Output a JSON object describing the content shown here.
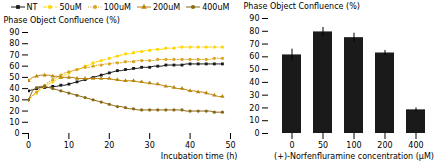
{
  "chart_data": [
    {
      "type": "line",
      "xlabel": "Incubation time (h)",
      "ylabel": "Phase Object Confluence (%)",
      "x": [
        0,
        1,
        2,
        3,
        4,
        5,
        6,
        7,
        8,
        9,
        10,
        11,
        12,
        13,
        14,
        15,
        16,
        17,
        18,
        19,
        20,
        21,
        22,
        23,
        24,
        25,
        26,
        27,
        28,
        29,
        30,
        31,
        32,
        33,
        34,
        35,
        36,
        37,
        38,
        39,
        40,
        41,
        42,
        43,
        44,
        45,
        46,
        47,
        48
      ],
      "series": [
        {
          "name": "NT",
          "color": "#1a1a1a",
          "marker": "square",
          "line_style": "solid",
          "values": [
            38,
            39,
            40,
            41,
            41,
            41,
            42,
            42,
            43,
            43,
            44,
            45,
            46,
            47,
            48,
            49,
            50,
            51,
            52,
            53,
            54,
            55,
            56,
            56,
            57,
            57,
            58,
            58,
            59,
            59,
            59,
            60,
            60,
            60,
            61,
            61,
            61,
            61,
            61,
            62,
            62,
            62,
            62,
            62,
            62,
            62,
            62,
            62,
            62
          ]
        },
        {
          "name": "50uM",
          "color": "#FFD700",
          "marker": "circle",
          "line_style": "dashed",
          "values": [
            30,
            33,
            36,
            39,
            42,
            44,
            46,
            48,
            50,
            52,
            54,
            56,
            57,
            58,
            60,
            61,
            63,
            64,
            65,
            66,
            67,
            68,
            69,
            70,
            71,
            71,
            72,
            73,
            73,
            74,
            74,
            75,
            75,
            75,
            76,
            76,
            76,
            77,
            77,
            77,
            77,
            77,
            77,
            77,
            77,
            77,
            77,
            77,
            77
          ]
        },
        {
          "name": "100uM",
          "color": "#DAA520",
          "marker": "circle",
          "line_style": "dotted",
          "values": [
            30,
            34,
            37,
            40,
            43,
            46,
            48,
            50,
            52,
            54,
            55,
            56,
            57,
            58,
            59,
            59,
            60,
            61,
            61,
            62,
            62,
            63,
            63,
            63,
            64,
            64,
            64,
            65,
            65,
            65,
            65,
            65,
            66,
            66,
            66,
            66,
            66,
            66,
            66,
            66,
            66,
            66,
            66,
            66,
            66,
            66,
            67,
            67,
            67
          ]
        },
        {
          "name": "200uM",
          "color": "#B8860B",
          "marker": "triangle",
          "line_style": "solid",
          "values": [
            47,
            50,
            51,
            52,
            52,
            52,
            51,
            51,
            50,
            50,
            50,
            50,
            49,
            49,
            49,
            49,
            49,
            49,
            49,
            49,
            49,
            48,
            48,
            47,
            47,
            47,
            47,
            46,
            46,
            45,
            45,
            44,
            44,
            43,
            42,
            42,
            41,
            40,
            40,
            39,
            38,
            38,
            37,
            37,
            36,
            35,
            34,
            33,
            33
          ]
        },
        {
          "name": "400uM",
          "color": "#8B6914",
          "marker": "circle",
          "line_style": "solid",
          "values": [
            30,
            38,
            41,
            42,
            42,
            41,
            40,
            39,
            38,
            37,
            36,
            35,
            34,
            33,
            32,
            31,
            30,
            29,
            28,
            27,
            26,
            25,
            24,
            24,
            23,
            22,
            22,
            21,
            21,
            21,
            21,
            21,
            21,
            21,
            21,
            21,
            21,
            21,
            21,
            20,
            20,
            20,
            20,
            20,
            20,
            20,
            19,
            19,
            19
          ]
        }
      ],
      "xlim": [
        0,
        50
      ],
      "xticks": [
        0,
        10,
        20,
        30,
        40,
        50
      ],
      "ylim": [
        0,
        90
      ],
      "yticks": [
        0,
        10,
        20,
        30,
        40,
        50,
        60,
        70,
        80,
        90
      ],
      "legend": "top"
    },
    {
      "type": "bar",
      "xlabel": "(+)-Norfenfluramine concentration (μM)",
      "ylabel": "Phase Object Confluence (%)",
      "categories": [
        "0",
        "50",
        "100",
        "200",
        "400"
      ],
      "values": [
        61.5,
        79.5,
        75.0,
        63.0,
        18.5
      ],
      "errors": [
        4.5,
        3.5,
        3.5,
        2.0,
        1.5
      ],
      "color": "#1a1a1a",
      "ylim": [
        0,
        90
      ],
      "yticks": [
        0,
        10,
        20,
        30,
        40,
        50,
        60,
        70,
        80,
        90
      ]
    }
  ]
}
